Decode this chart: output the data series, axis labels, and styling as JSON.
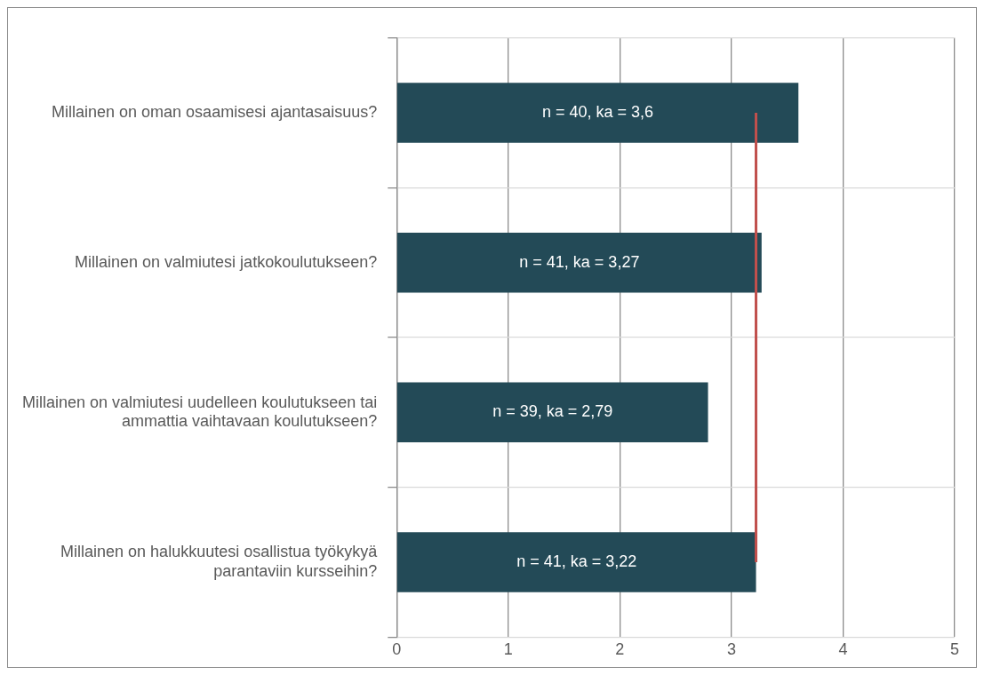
{
  "chart_data": {
    "type": "bar",
    "orientation": "horizontal",
    "categories": [
      "Millainen on oman osaamisesi ajantasaisuus?",
      "Millainen on valmiutesi jatkokoulutukseen?",
      "Millainen on valmiutesi uudelleen koulutukseen tai ammattia vaihtavaan koulutukseen?",
      "Millainen on halukkuutesi osallistua työkykyä parantaviin kursseihin?"
    ],
    "values": [
      3.6,
      3.27,
      2.79,
      3.22
    ],
    "value_labels": [
      "n = 40, ka = 3,6",
      "n = 41, ka = 3,27",
      "n = 39, ka = 2,79",
      "n = 41, ka = 3,22"
    ],
    "color": "#234a57",
    "xlim": [
      0,
      5
    ],
    "xticks": [
      0,
      1,
      2,
      3,
      4,
      5
    ],
    "ref_lines": [
      {
        "axis": "x",
        "value": 3.22,
        "color": "#c0504d"
      }
    ],
    "grid": true,
    "legend": false
  }
}
